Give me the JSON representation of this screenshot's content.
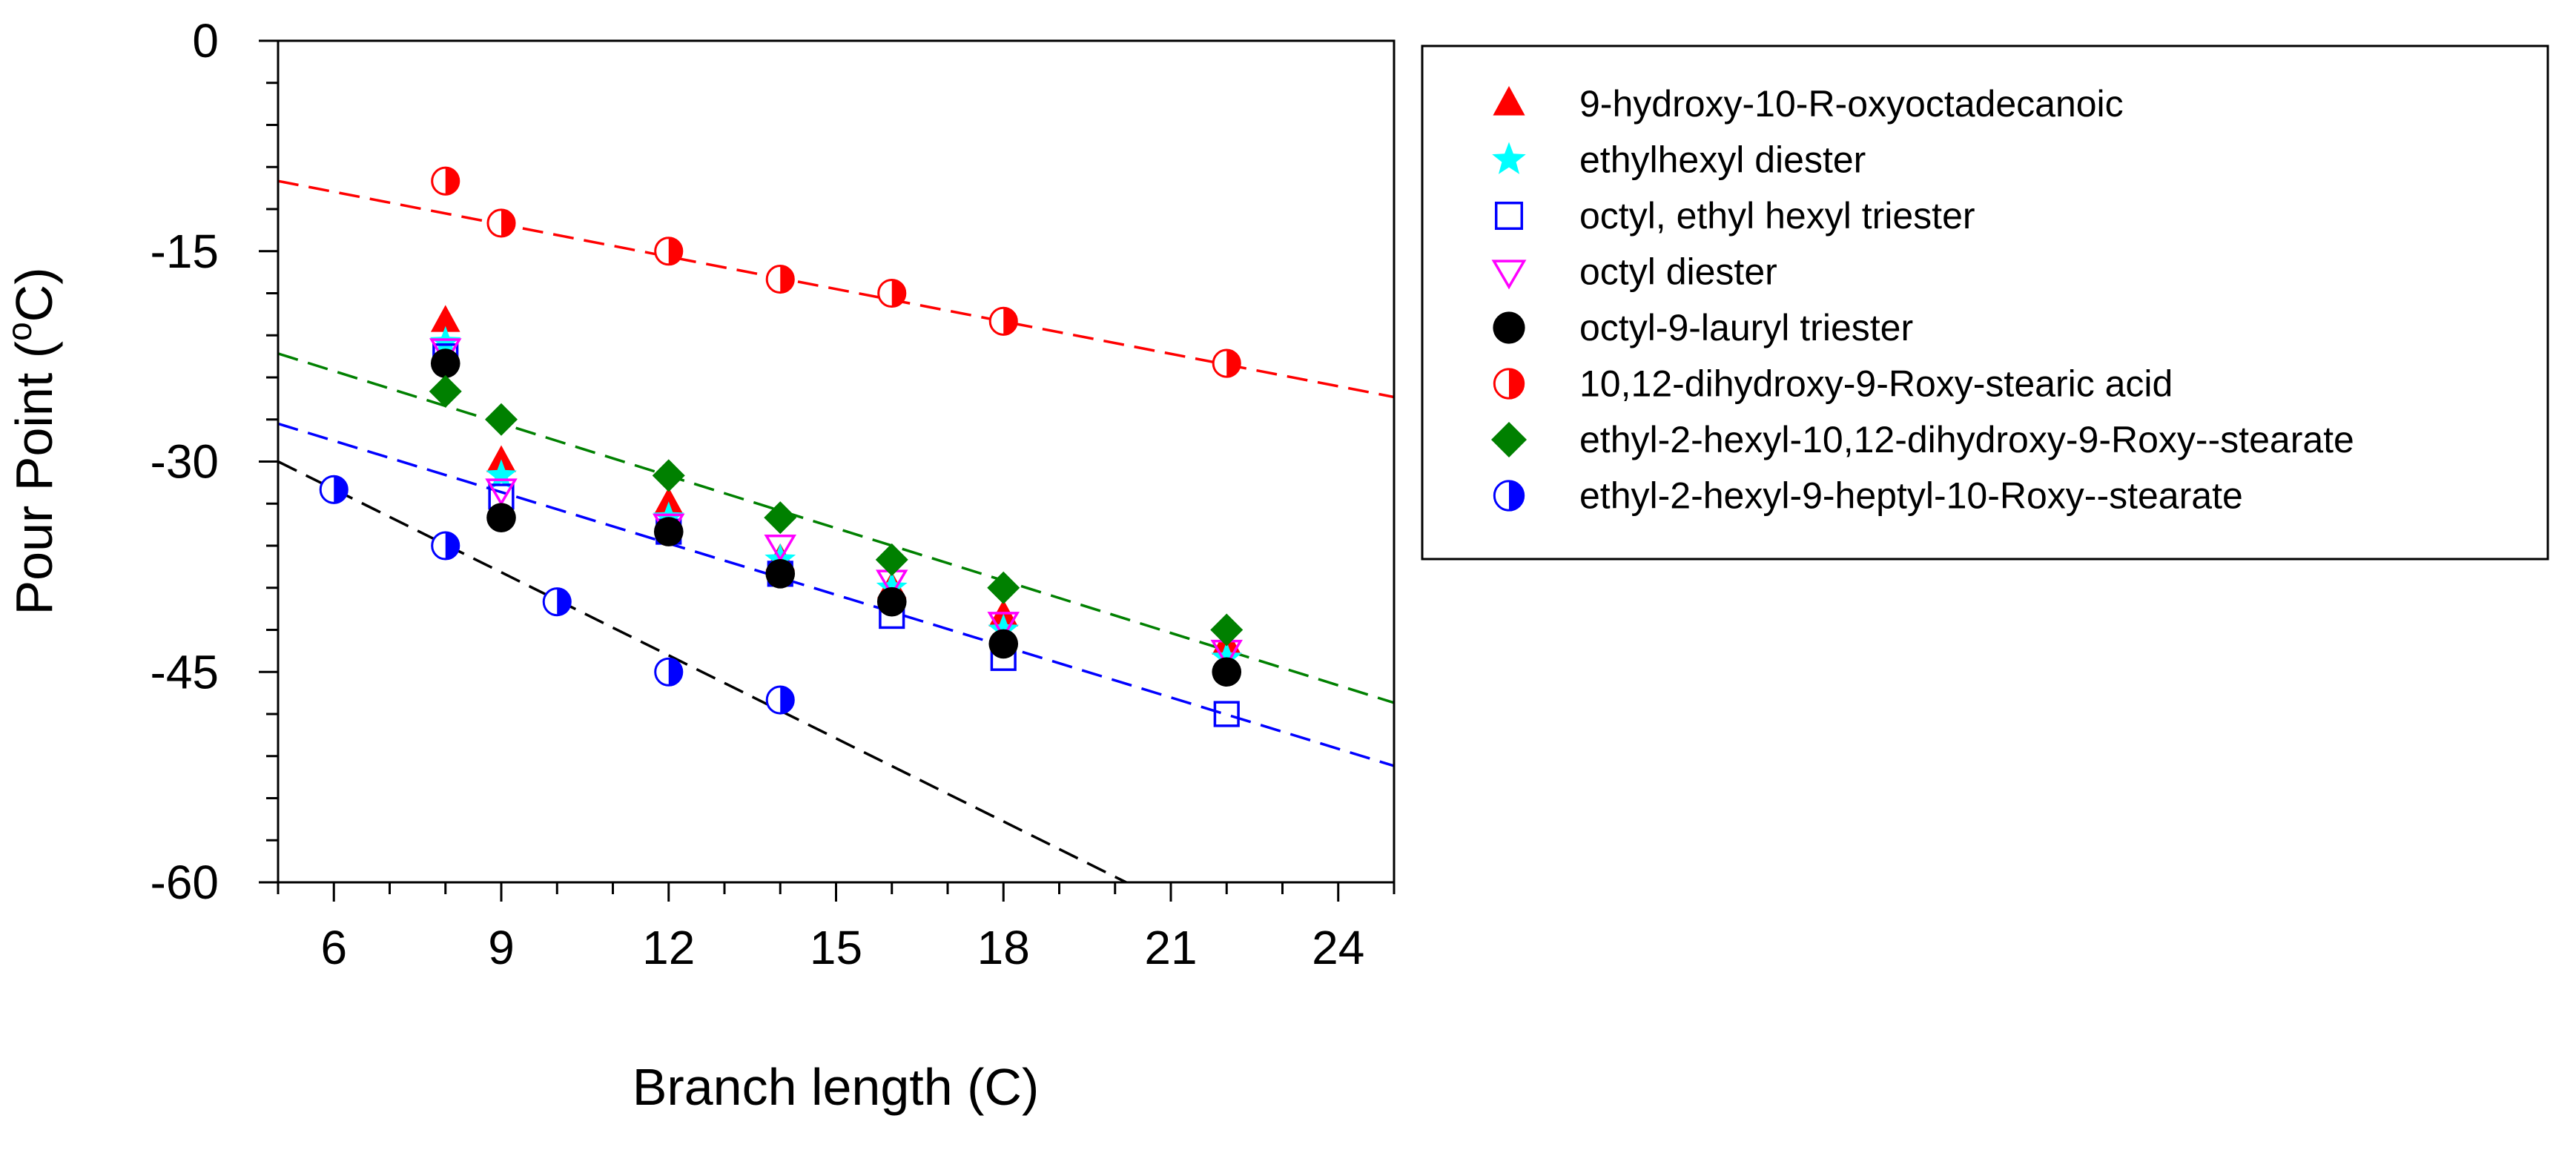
{
  "chart_data": {
    "type": "scatter",
    "xlabel": "Branch length (C)",
    "ylabel_parts": {
      "prefix": "Pour Point (",
      "sup": "o",
      "suffix": "C)"
    },
    "xlim": [
      5,
      25
    ],
    "ylim": [
      -60,
      0
    ],
    "x_ticks": [
      6,
      9,
      12,
      15,
      18,
      21,
      24
    ],
    "x_tick_labels": [
      "6",
      "9",
      "12",
      "15",
      "18",
      "21",
      "24"
    ],
    "y_ticks": [
      0,
      -15,
      -30,
      -45,
      -60
    ],
    "y_tick_labels": [
      "0",
      "-15",
      "-30",
      "-45",
      "-60"
    ],
    "legend_position": "right, outside plot",
    "series": [
      {
        "name": "9-hydroxy-10-R-oxyoctadecanoic",
        "marker": "triangle-up",
        "color": "#ff0000",
        "x": [
          8,
          9,
          12,
          14,
          16,
          18,
          22
        ],
        "y": [
          -20,
          -30,
          -33,
          -37,
          -39,
          -41,
          -43
        ]
      },
      {
        "name": "ethylhexyl diester",
        "marker": "star",
        "color": "#00ffff",
        "x": [
          8,
          9,
          12,
          14,
          16,
          18,
          22
        ],
        "y": [
          -21.5,
          -31,
          -34,
          -37,
          -39,
          -42,
          -44
        ]
      },
      {
        "name": "octyl, ethyl hexyl triester",
        "marker": "square-open",
        "color": "#0000ff",
        "x": [
          8,
          9,
          12,
          14,
          16,
          18,
          22
        ],
        "y": [
          -22.5,
          -32.5,
          -35,
          -38,
          -41,
          -44,
          -48
        ]
      },
      {
        "name": "octyl diester",
        "marker": "triangle-down-open",
        "color": "#ff00ff",
        "x": [
          8,
          9,
          12,
          14,
          16,
          18,
          22
        ],
        "y": [
          -22,
          -32,
          -34.5,
          -36,
          -38.5,
          -41.5,
          -43.5
        ]
      },
      {
        "name": "octyl-9-lauryl triester",
        "marker": "circle",
        "color": "#000000",
        "x": [
          8,
          9,
          12,
          14,
          16,
          18,
          22
        ],
        "y": [
          -23,
          -34,
          -35,
          -38,
          -40,
          -43,
          -45
        ]
      },
      {
        "name": "10,12-dihydroxy-9-Roxy-stearic acid",
        "marker": "circle-half",
        "color": "#ff0000",
        "x": [
          8,
          9,
          12,
          14,
          16,
          18,
          22
        ],
        "y": [
          -10,
          -13,
          -15,
          -17,
          -18,
          -20,
          -23
        ]
      },
      {
        "name": "ethyl-2-hexyl-10,12-dihydroxy-9-Roxy--stearate",
        "marker": "diamond",
        "color": "#008000",
        "x": [
          8,
          9,
          12,
          14,
          16,
          18,
          22
        ],
        "y": [
          -25,
          -27,
          -31,
          -34,
          -37,
          -39,
          -42
        ]
      },
      {
        "name": "ethyl-2-hexyl-9-heptyl-10-Roxy--stearate",
        "marker": "circle-half",
        "color": "#0000ff",
        "x": [
          6,
          8,
          10,
          12,
          14
        ],
        "y": [
          -32,
          -36,
          -40,
          -45,
          -47
        ]
      }
    ],
    "fit_lines": [
      {
        "color": "#ff0000",
        "x": [
          5,
          25
        ],
        "y": [
          -10,
          -25.4
        ]
      },
      {
        "color": "#008000",
        "x": [
          5,
          25
        ],
        "y": [
          -22.3,
          -47.2
        ]
      },
      {
        "color": "#0000ff",
        "x": [
          5,
          25
        ],
        "y": [
          -27.3,
          -51.7
        ]
      },
      {
        "color": "#000000",
        "x": [
          5,
          20.2
        ],
        "y": [
          -30,
          -60
        ]
      }
    ]
  }
}
